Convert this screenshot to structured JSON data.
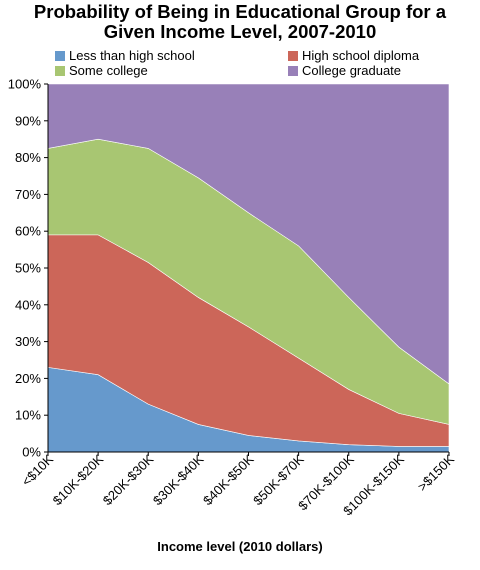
{
  "chart_data": {
    "type": "area",
    "stacked": true,
    "title": "Probability of Being in Educational Group for a Given Income Level, 2007-2010",
    "title_lines": [
      "Probability of Being in Educational Group for a",
      "Given Income Level, 2007-2010"
    ],
    "xlabel": "Income level (2010 dollars)",
    "ylabel": "",
    "ylim": [
      0,
      100
    ],
    "y_ticks": [
      "0%",
      "10%",
      "20%",
      "30%",
      "40%",
      "50%",
      "60%",
      "70%",
      "80%",
      "90%",
      "100%"
    ],
    "categories": [
      "<$10K",
      "$10K-$20K",
      "$20K-$30K",
      "$30K-$40K",
      "$40K-$50K",
      "$50K-$70K",
      "$70K-$100K",
      "$100K-$150K",
      ">$150K"
    ],
    "legend_position": "top",
    "grid": false,
    "series": [
      {
        "name": "Less than high school",
        "color": "#6699cc",
        "values": [
          23,
          21,
          13,
          7.5,
          4.5,
          3,
          2,
          1.5,
          1.5
        ]
      },
      {
        "name": "High school diploma",
        "color": "#cc6659",
        "values": [
          36,
          38,
          38.5,
          34.5,
          29.5,
          22.5,
          15,
          9,
          6
        ]
      },
      {
        "name": "Some college",
        "color": "#a8c672",
        "values": [
          23.5,
          26,
          31,
          32.5,
          31,
          30.5,
          25,
          18,
          11
        ]
      },
      {
        "name": "College graduate",
        "color": "#9880b8",
        "values": [
          17.5,
          15,
          17.5,
          25.5,
          35,
          44,
          58,
          71.5,
          81.5
        ]
      }
    ]
  }
}
